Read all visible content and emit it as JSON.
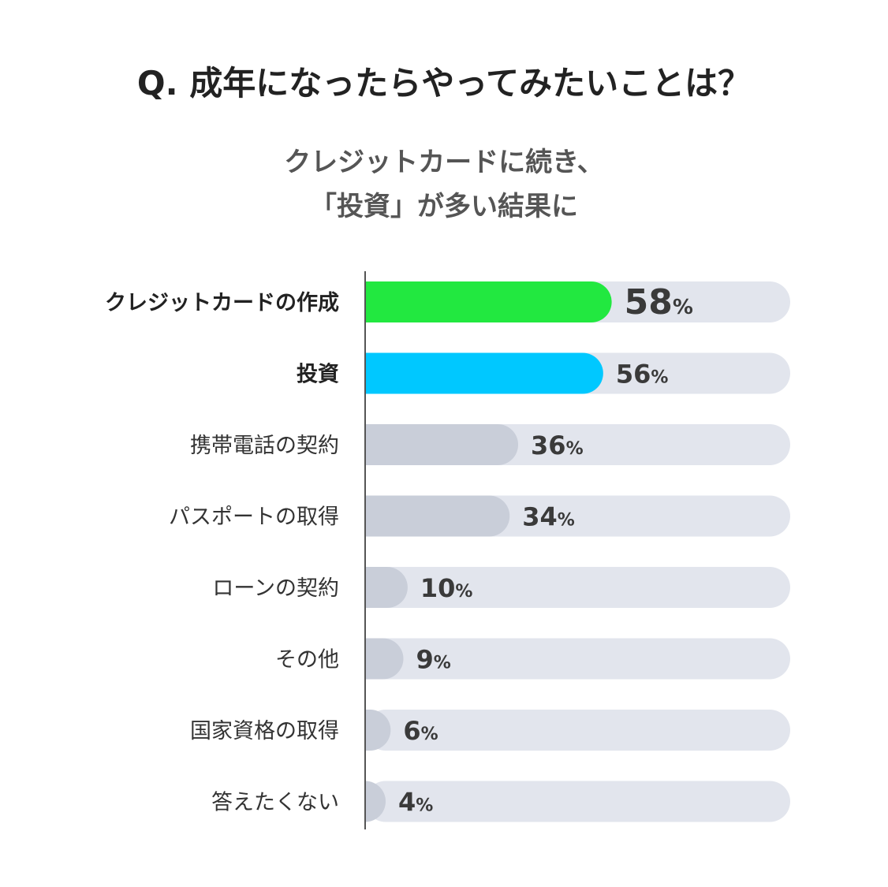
{
  "header": {
    "title": "Q. 成年になったらやってみたいことは？",
    "subtitle_line1": "クレジットカードに続き、",
    "subtitle_line2": "「投資」が多い結果に"
  },
  "chart_data": {
    "type": "bar",
    "orientation": "horizontal",
    "categories": [
      "クレジットカードの作成",
      "投資",
      "携帯電話の契約",
      "パスポートの取得",
      "ローンの契約",
      "その他",
      "国家資格の取得",
      "答えたくない"
    ],
    "values": [
      58,
      56,
      36,
      34,
      10,
      9,
      6,
      4
    ],
    "value_suffix": "%",
    "xlim": [
      0,
      100
    ],
    "grid": false,
    "legend": "none",
    "colors": {
      "highlight_first": "#22e840",
      "highlight_second": "#00c8ff",
      "default_bar": "#c9ced9",
      "track": "#e2e5ed",
      "axis": "#555555"
    },
    "bold_categories": [
      0,
      1
    ]
  }
}
